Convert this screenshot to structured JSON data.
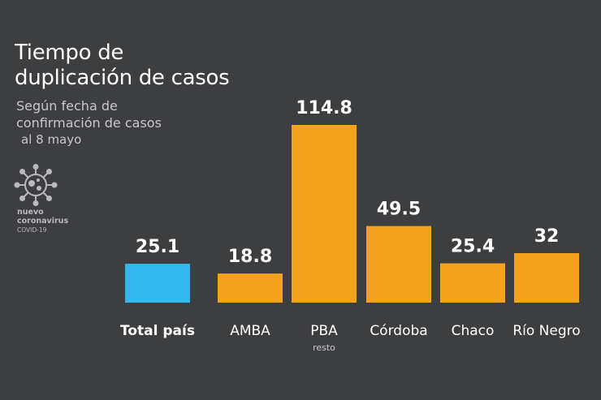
{
  "title_line1": "Tiempo de",
  "title_line2": "duplicación de casos",
  "subtitle_line1": "Según fecha de",
  "subtitle_line2": "confirmación de casos",
  "subtitle_line3": "al 8 mayo",
  "logo": {
    "icon": "virus-icon",
    "line1": "nuevo",
    "line2": "coronavirus",
    "line3": "COVID-19"
  },
  "colors": {
    "background": "#3d3e40",
    "highlight": "#31b8ec",
    "bar": "#f5a31f",
    "text": "#ffffff"
  },
  "chart_data": {
    "type": "bar",
    "title": "Tiempo de duplicación de casos",
    "subtitle": "Según fecha de confirmación de casos al 8 mayo",
    "categories": [
      "Total país",
      "AMBA",
      "PBA",
      "Córdoba",
      "Chaco",
      "Río Negro"
    ],
    "category_sublabels": [
      "",
      "",
      "resto",
      "",
      "",
      ""
    ],
    "values": [
      25.1,
      18.8,
      114.8,
      49.5,
      25.4,
      32
    ],
    "value_labels": [
      "25.1",
      "18.8",
      "114.8",
      "49.5",
      "25.4",
      "32"
    ],
    "highlight_index": 0,
    "ylim": [
      0,
      114.8
    ],
    "xlabel": "",
    "ylabel": ""
  }
}
